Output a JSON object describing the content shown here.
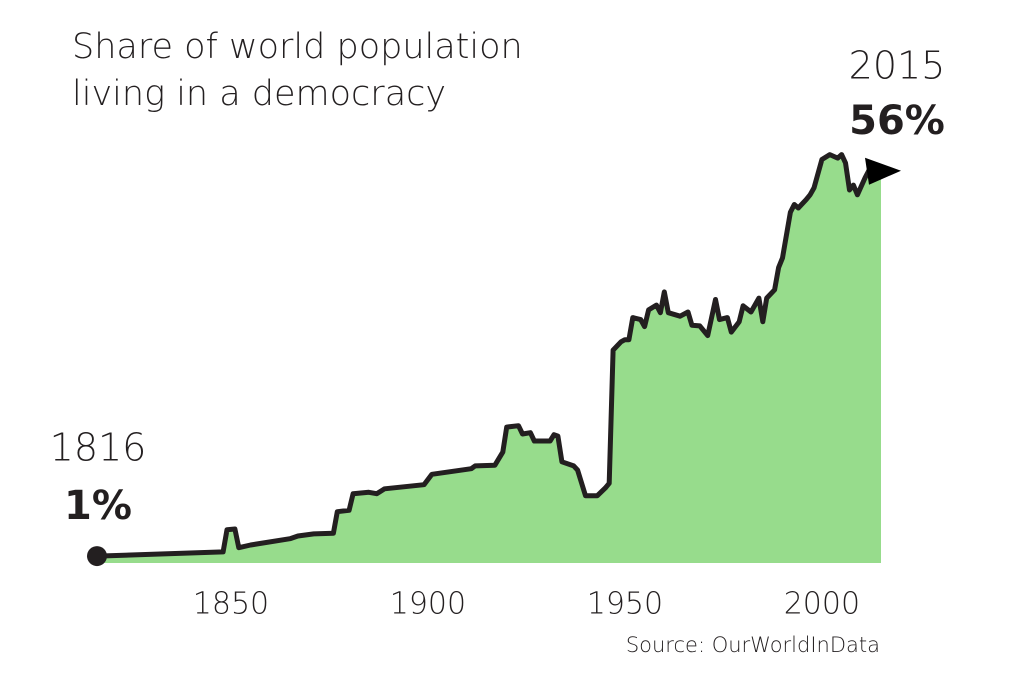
{
  "chart_data": {
    "type": "area",
    "title": [
      "Share of world population",
      "living in a democracy"
    ],
    "x": [
      1816,
      1848,
      1849,
      1851,
      1852,
      1855,
      1865,
      1867,
      1871,
      1876,
      1877,
      1880,
      1881,
      1885,
      1887,
      1889,
      1899,
      1901,
      1911,
      1912,
      1917,
      1919,
      1920,
      1923,
      1924,
      1926,
      1927,
      1931,
      1932,
      1933,
      1934,
      1937,
      1938,
      1940,
      1943,
      1945,
      1946,
      1947,
      1949,
      1950,
      1951,
      1952,
      1954,
      1955,
      1956,
      1958,
      1959,
      1960,
      1961,
      1964,
      1966,
      1967,
      1969,
      1971,
      1973,
      1974,
      1976,
      1977,
      1979,
      1980,
      1982,
      1984,
      1985,
      1986,
      1988,
      1989,
      1990,
      1992,
      1993,
      1994,
      1996,
      1997,
      1998,
      2000,
      2002,
      2004,
      2005,
      2006,
      2007,
      2008,
      2009,
      2011,
      2012,
      2015
    ],
    "values": [
      1,
      1.6,
      4.8,
      4.9,
      2.2,
      2.6,
      3.5,
      3.9,
      4.2,
      4.3,
      7.4,
      7.6,
      10.0,
      10.2,
      10.0,
      10.7,
      11.3,
      12.8,
      13.6,
      14.0,
      14.1,
      16.0,
      19.6,
      19.8,
      18.6,
      18.8,
      17.6,
      17.6,
      18.5,
      18.3,
      14.6,
      14.0,
      13.4,
      9.7,
      9.7,
      10.8,
      11.5,
      30.7,
      31.9,
      32.2,
      32.2,
      35.4,
      35.1,
      34.1,
      36.5,
      37.2,
      36.1,
      39.1,
      36.1,
      35.6,
      36.2,
      34.3,
      34.2,
      32.8,
      38.0,
      35.1,
      35.4,
      33.3,
      34.8,
      37.1,
      36.2,
      38.2,
      34.8,
      38.2,
      39.4,
      42.6,
      44.0,
      50.6,
      51.7,
      51.2,
      52.4,
      53.1,
      54.1,
      58.2,
      58.9,
      58.4,
      58.9,
      57.7,
      53.8,
      54.5,
      53.1,
      55.6,
      56.7,
      56
    ],
    "fill_color": "#97dc8c",
    "line_color": "#231f20",
    "xlim": [
      1816,
      2015
    ],
    "xticks": [
      1850,
      1900,
      1950,
      2000
    ],
    "ylim": [
      0,
      60
    ],
    "annotations": {
      "start_year": "1816",
      "start_value": "1%",
      "end_year": "2015",
      "end_value": "56%"
    },
    "source": "Source: OurWorldInData"
  }
}
